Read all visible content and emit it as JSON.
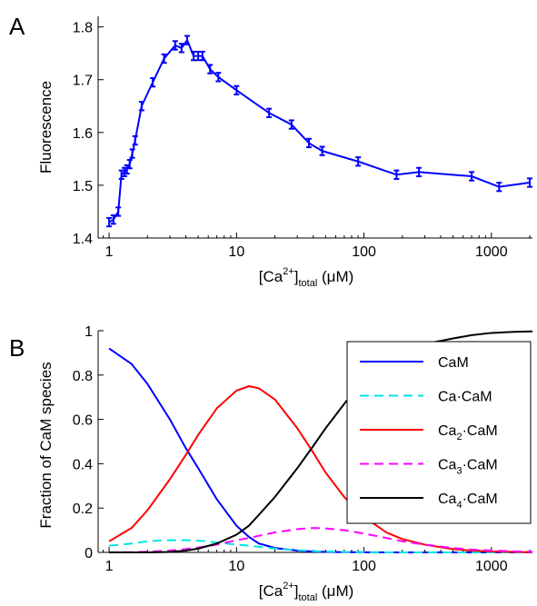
{
  "chart_data": [
    {
      "type": "line",
      "panel_label": "A",
      "xlabel": {
        "pre": "[Ca",
        "sup": "2+",
        "mid": "]",
        "sub": "total",
        "post": " (μM)"
      },
      "ylabel": "Fluorescence",
      "xscale": "log",
      "xlim": [
        0.82,
        2100
      ],
      "ylim": [
        1.4,
        1.82
      ],
      "xticks": [
        1,
        10,
        100,
        1000
      ],
      "xtick_labels": [
        "1",
        "10",
        "100",
        "1000"
      ],
      "yticks": [
        1.4,
        1.5,
        1.6,
        1.7,
        1.8
      ],
      "ytick_labels": [
        "1.4",
        "1.5",
        "1.6",
        "1.7",
        "1.8"
      ],
      "grid": false,
      "color": "#0000ff",
      "series": [
        {
          "x": [
            1.0,
            1.08,
            1.18,
            1.25,
            1.32,
            1.38,
            1.45,
            1.52,
            1.6,
            1.8,
            2.2,
            2.7,
            3.3,
            3.7,
            4.1,
            4.6,
            5.0,
            5.4,
            6.2,
            7.2,
            10,
            18,
            27,
            37,
            47,
            90,
            180,
            270,
            700,
            1150,
            2000
          ],
          "y": [
            1.43,
            1.435,
            1.45,
            1.52,
            1.525,
            1.53,
            1.54,
            1.56,
            1.585,
            1.65,
            1.695,
            1.74,
            1.765,
            1.76,
            1.775,
            1.745,
            1.745,
            1.745,
            1.72,
            1.705,
            1.68,
            1.637,
            1.615,
            1.58,
            1.565,
            1.545,
            1.52,
            1.525,
            1.517,
            1.497,
            1.505
          ],
          "error": [
            0.008,
            0.008,
            0.008,
            0.008,
            0.008,
            0.008,
            0.008,
            0.008,
            0.008,
            0.008,
            0.008,
            0.008,
            0.008,
            0.008,
            0.008,
            0.008,
            0.008,
            0.008,
            0.008,
            0.008,
            0.008,
            0.008,
            0.008,
            0.008,
            0.008,
            0.008,
            0.008,
            0.008,
            0.008,
            0.008,
            0.008
          ]
        }
      ]
    },
    {
      "type": "line",
      "panel_label": "B",
      "xlabel": {
        "pre": "[Ca",
        "sup": "2+",
        "mid": "]",
        "sub": "total",
        "post": " (μM)"
      },
      "ylabel": "Fraction of CaM species",
      "xscale": "log",
      "xlim": [
        0.82,
        2100
      ],
      "ylim": [
        0,
        1
      ],
      "xticks": [
        1,
        10,
        100,
        1000
      ],
      "xtick_labels": [
        "1",
        "10",
        "100",
        "1000"
      ],
      "yticks": [
        0,
        0.2,
        0.4,
        0.6,
        0.8,
        1
      ],
      "ytick_labels": [
        "0",
        "0.2",
        "0.4",
        "0.6",
        "0.8",
        "1"
      ],
      "grid": false,
      "legend_position": "right",
      "x": [
        1,
        1.5,
        2,
        3,
        4,
        5,
        7,
        10,
        12.5,
        15,
        20,
        30,
        40,
        50,
        70,
        100,
        150,
        200,
        300,
        500,
        700,
        1000,
        1500,
        2100
      ],
      "series": [
        {
          "name": "CaM",
          "color": "#0000ff",
          "dash": "solid",
          "values": [
            0.92,
            0.85,
            0.76,
            0.6,
            0.47,
            0.38,
            0.24,
            0.12,
            0.07,
            0.04,
            0.02,
            0.008,
            0.004,
            0.002,
            0.001,
            0.0005,
            0,
            0,
            0,
            0,
            0,
            0,
            0,
            0
          ]
        },
        {
          "name": "Ca·CaM",
          "color": "#00e5e5",
          "dash": "dashed",
          "values": [
            0.03,
            0.04,
            0.05,
            0.055,
            0.055,
            0.053,
            0.045,
            0.035,
            0.03,
            0.025,
            0.017,
            0.01,
            0.006,
            0.004,
            0.002,
            0.001,
            0,
            0,
            0,
            0,
            0,
            0,
            0,
            0
          ]
        },
        {
          "name": "Ca₂·CaM",
          "name_base": "Ca",
          "name_sub": "2",
          "name_tail": "·CaM",
          "color": "#ff0000",
          "dash": "solid",
          "values": [
            0.05,
            0.11,
            0.19,
            0.33,
            0.44,
            0.53,
            0.65,
            0.73,
            0.75,
            0.74,
            0.69,
            0.56,
            0.45,
            0.36,
            0.25,
            0.16,
            0.09,
            0.06,
            0.035,
            0.015,
            0.008,
            0.004,
            0.002,
            0.001
          ]
        },
        {
          "name": "Ca₃·CaM",
          "name_base": "Ca",
          "name_sub": "3",
          "name_tail": "·CaM",
          "color": "#ff00ff",
          "dash": "dashed",
          "values": [
            0,
            0.001,
            0.003,
            0.008,
            0.015,
            0.022,
            0.035,
            0.055,
            0.065,
            0.075,
            0.09,
            0.105,
            0.11,
            0.108,
            0.1,
            0.085,
            0.065,
            0.05,
            0.035,
            0.02,
            0.013,
            0.008,
            0.005,
            0.003
          ]
        },
        {
          "name": "Ca₄·CaM",
          "name_base": "Ca",
          "name_sub": "4",
          "name_tail": "·CaM",
          "color": "#000000",
          "dash": "solid",
          "values": [
            0,
            0,
            0,
            0.002,
            0.008,
            0.017,
            0.04,
            0.08,
            0.12,
            0.17,
            0.25,
            0.38,
            0.48,
            0.56,
            0.67,
            0.78,
            0.86,
            0.9,
            0.94,
            0.965,
            0.98,
            0.99,
            0.995,
            0.997
          ]
        }
      ]
    }
  ]
}
